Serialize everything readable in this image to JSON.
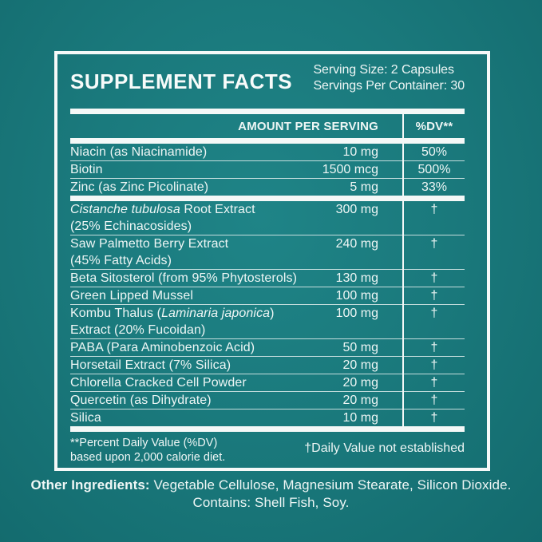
{
  "colors": {
    "background_teal": "#1a797c",
    "panel_border_white": "#f5f9f8",
    "text_white": "#eef6f5"
  },
  "panel": {
    "title": "SUPPLEMENT FACTS",
    "serving_size": "Serving Size: 2 Capsules",
    "servings_per_container": "Servings Per Container: 30",
    "table": {
      "amount_header": "AMOUNT PER SERVING",
      "dv_header": "%DV**",
      "rows": [
        {
          "segments": [
            {
              "t": "Niacin (as Niacinamide)"
            }
          ],
          "amount": "10 mg",
          "dv": "50%"
        },
        {
          "segments": [
            {
              "t": "Biotin"
            }
          ],
          "amount": "1500 mcg",
          "dv": "500%"
        },
        {
          "segments": [
            {
              "t": "Zinc (as Zinc Picolinate)"
            }
          ],
          "amount": "5 mg",
          "dv": "33%",
          "thick_after": true
        },
        {
          "segments": [
            {
              "t": "Cistanche tubulosa",
              "i": true
            },
            {
              "t": " Root Extract"
            }
          ],
          "line2": "(25% Echinacosides)",
          "amount": "300 mg",
          "dv": "†"
        },
        {
          "segments": [
            {
              "t": "Saw Palmetto Berry Extract"
            }
          ],
          "line2": "(45% Fatty Acids)",
          "amount": "240 mg",
          "dv": "†"
        },
        {
          "segments": [
            {
              "t": "Beta Sitosterol (from 95% Phytosterols)"
            }
          ],
          "amount": "130 mg",
          "dv": "†"
        },
        {
          "segments": [
            {
              "t": "Green Lipped Mussel"
            }
          ],
          "amount": "100 mg",
          "dv": "†"
        },
        {
          "segments": [
            {
              "t": "Kombu Thalus ("
            },
            {
              "t": "Laminaria japonica",
              "i": true
            },
            {
              "t": ")"
            }
          ],
          "line2": "Extract (20% Fucoidan)",
          "amount": "100 mg",
          "dv": "†"
        },
        {
          "segments": [
            {
              "t": "PABA (Para Aminobenzoic Acid)"
            }
          ],
          "amount": "50 mg",
          "dv": "†"
        },
        {
          "segments": [
            {
              "t": "Horsetail Extract (7% Silica)"
            }
          ],
          "amount": "20 mg",
          "dv": "†"
        },
        {
          "segments": [
            {
              "t": "Chlorella Cracked Cell Powder"
            }
          ],
          "amount": "20 mg",
          "dv": "†"
        },
        {
          "segments": [
            {
              "t": "Quercetin (as Dihydrate)"
            }
          ],
          "amount": "20 mg",
          "dv": "†"
        },
        {
          "segments": [
            {
              "t": "Silica"
            }
          ],
          "amount": "10 mg",
          "dv": "†",
          "thick_after": true
        }
      ]
    },
    "footnote": {
      "left_line1": "**Percent Daily Value (%DV)",
      "left_line2": "based upon 2,000 calorie diet.",
      "right": "†Daily Value not established"
    }
  },
  "below_panel": {
    "other_ingredients_label": "Other Ingredients:",
    "other_ingredients_rest": " Vegetable Cellulose, Magnesium Stearate, Silicon Dioxide.",
    "contains_line": "Contains: Shell Fish, Soy."
  }
}
